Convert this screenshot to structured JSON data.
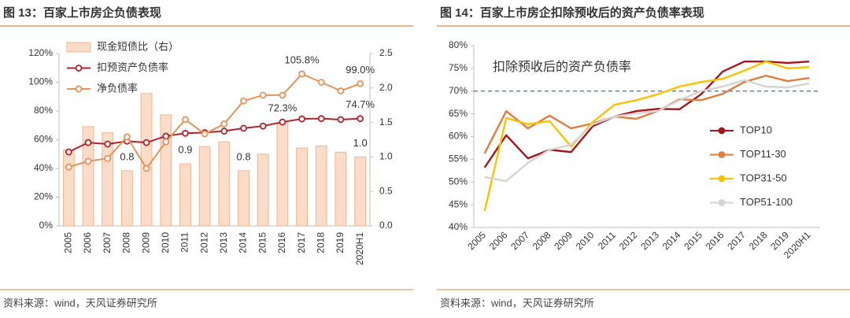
{
  "chart_data": [
    {
      "type": "combo",
      "title": "图 13：百家上市房企负债表现",
      "source": "资料来源：wind，天风证券研究所",
      "categories": [
        "2005",
        "2006",
        "2007",
        "2008",
        "2009",
        "2010",
        "2011",
        "2012",
        "2013",
        "2014",
        "2015",
        "2016",
        "2017",
        "2018",
        "2019",
        "2020H1"
      ],
      "series": [
        {
          "name": "现金短债比（右）",
          "type": "bar",
          "axis": "y2",
          "color": "#fbdcc8",
          "edge": "#f0b48e",
          "values": [
            1.1,
            1.44,
            1.35,
            0.8,
            1.92,
            1.61,
            0.9,
            1.15,
            1.22,
            0.8,
            1.04,
            1.5,
            1.13,
            1.16,
            1.07,
            1.0
          ],
          "value_labels": [
            null,
            null,
            null,
            "0.8",
            null,
            null,
            "0.9",
            null,
            null,
            "0.8",
            null,
            null,
            null,
            null,
            null,
            "1.0"
          ]
        },
        {
          "name": "扣预资产负债率",
          "type": "line",
          "color": "#b0242a",
          "values": [
            51.5,
            58,
            57,
            59,
            58,
            62.5,
            64.5,
            65,
            66,
            68,
            69.5,
            72.3,
            74.5,
            74.7,
            74,
            74.7
          ],
          "value_labels": [
            null,
            null,
            null,
            null,
            null,
            null,
            null,
            null,
            null,
            null,
            null,
            "72.3%",
            null,
            null,
            null,
            "74.7%"
          ]
        },
        {
          "name": "净负债率",
          "type": "line",
          "color": "#e6925a",
          "values": [
            41,
            45,
            47,
            62,
            40,
            58.5,
            74,
            64,
            71,
            87,
            91,
            91,
            105.8,
            100,
            94,
            99.0
          ],
          "value_labels": [
            null,
            null,
            null,
            null,
            null,
            null,
            null,
            null,
            null,
            null,
            null,
            null,
            "105.8%",
            null,
            null,
            "99.0%"
          ]
        }
      ],
      "ylim": [
        0,
        120
      ],
      "yticks": [
        {
          "value": 0,
          "label": "0%"
        },
        {
          "value": 20,
          "label": "20%"
        },
        {
          "value": 40,
          "label": "40%"
        },
        {
          "value": 60,
          "label": "60%"
        },
        {
          "value": 80,
          "label": "80%"
        },
        {
          "value": 100,
          "label": "100%"
        },
        {
          "value": 120,
          "label": "120%"
        }
      ],
      "y2lim": [
        0,
        2.5
      ],
      "y2ticks": [
        {
          "value": 0,
          "label": "0.0"
        },
        0.5,
        {
          "value": 1,
          "label": "1.0"
        },
        1.5,
        {
          "value": 2,
          "label": "2.0"
        },
        2.5
      ],
      "legend": "top-left"
    },
    {
      "type": "line",
      "title": "图 14：百家上市房企扣除预收后的资产负债率表现",
      "source": "资料来源：wind，天风证券研究所",
      "annotation": "扣除预收后的资产负债率",
      "categories": [
        "2005",
        "2006",
        "2007",
        "2008",
        "2009",
        "2010",
        "2011",
        "2012",
        "2013",
        "2014",
        "2015",
        "2016",
        "2017",
        "2018",
        "2019",
        "2020H1"
      ],
      "series": [
        {
          "name": "TOP10",
          "color": "#a3161c",
          "values": [
            53.2,
            60.3,
            55.2,
            57.1,
            56.6,
            62.3,
            64.4,
            65.6,
            66.1,
            66,
            69.3,
            74.3,
            76.5,
            76.5,
            76.2,
            76.5
          ]
        },
        {
          "name": "TOP11-30",
          "color": "#e07c3c",
          "values": [
            56.3,
            65.6,
            61.8,
            64.6,
            61.8,
            62.9,
            64.4,
            63.9,
            65.6,
            68.2,
            68,
            69.4,
            72,
            73.4,
            72.2,
            72.9
          ]
        },
        {
          "name": "TOP31-50",
          "color": "#f7c300",
          "values": [
            43.6,
            64.1,
            62.7,
            63.4,
            57.8,
            63.2,
            67,
            68,
            69.3,
            71,
            72,
            72.7,
            74.5,
            76.5,
            75,
            75.3
          ]
        },
        {
          "name": "TOP51-100",
          "color": "#d4d4d4",
          "values": [
            51.1,
            50.2,
            54.2,
            57.1,
            58.2,
            62.7,
            64.4,
            65.1,
            65.6,
            68,
            70,
            71,
            72.4,
            71,
            70.8,
            71.7
          ]
        }
      ],
      "ylim": [
        40,
        80
      ],
      "yticks": [
        {
          "value": 40,
          "label": "40%"
        },
        {
          "value": 45,
          "label": "45%"
        },
        {
          "value": 50,
          "label": "50%"
        },
        {
          "value": 55,
          "label": "55%"
        },
        {
          "value": 60,
          "label": "60%"
        },
        {
          "value": 65,
          "label": "65%"
        },
        {
          "value": 70,
          "label": "70%"
        },
        {
          "value": 75,
          "label": "75%"
        },
        {
          "value": 80,
          "label": "80%"
        }
      ],
      "reference_line": {
        "value": 70,
        "color": "#4a6ea8"
      },
      "legend": "right"
    }
  ]
}
